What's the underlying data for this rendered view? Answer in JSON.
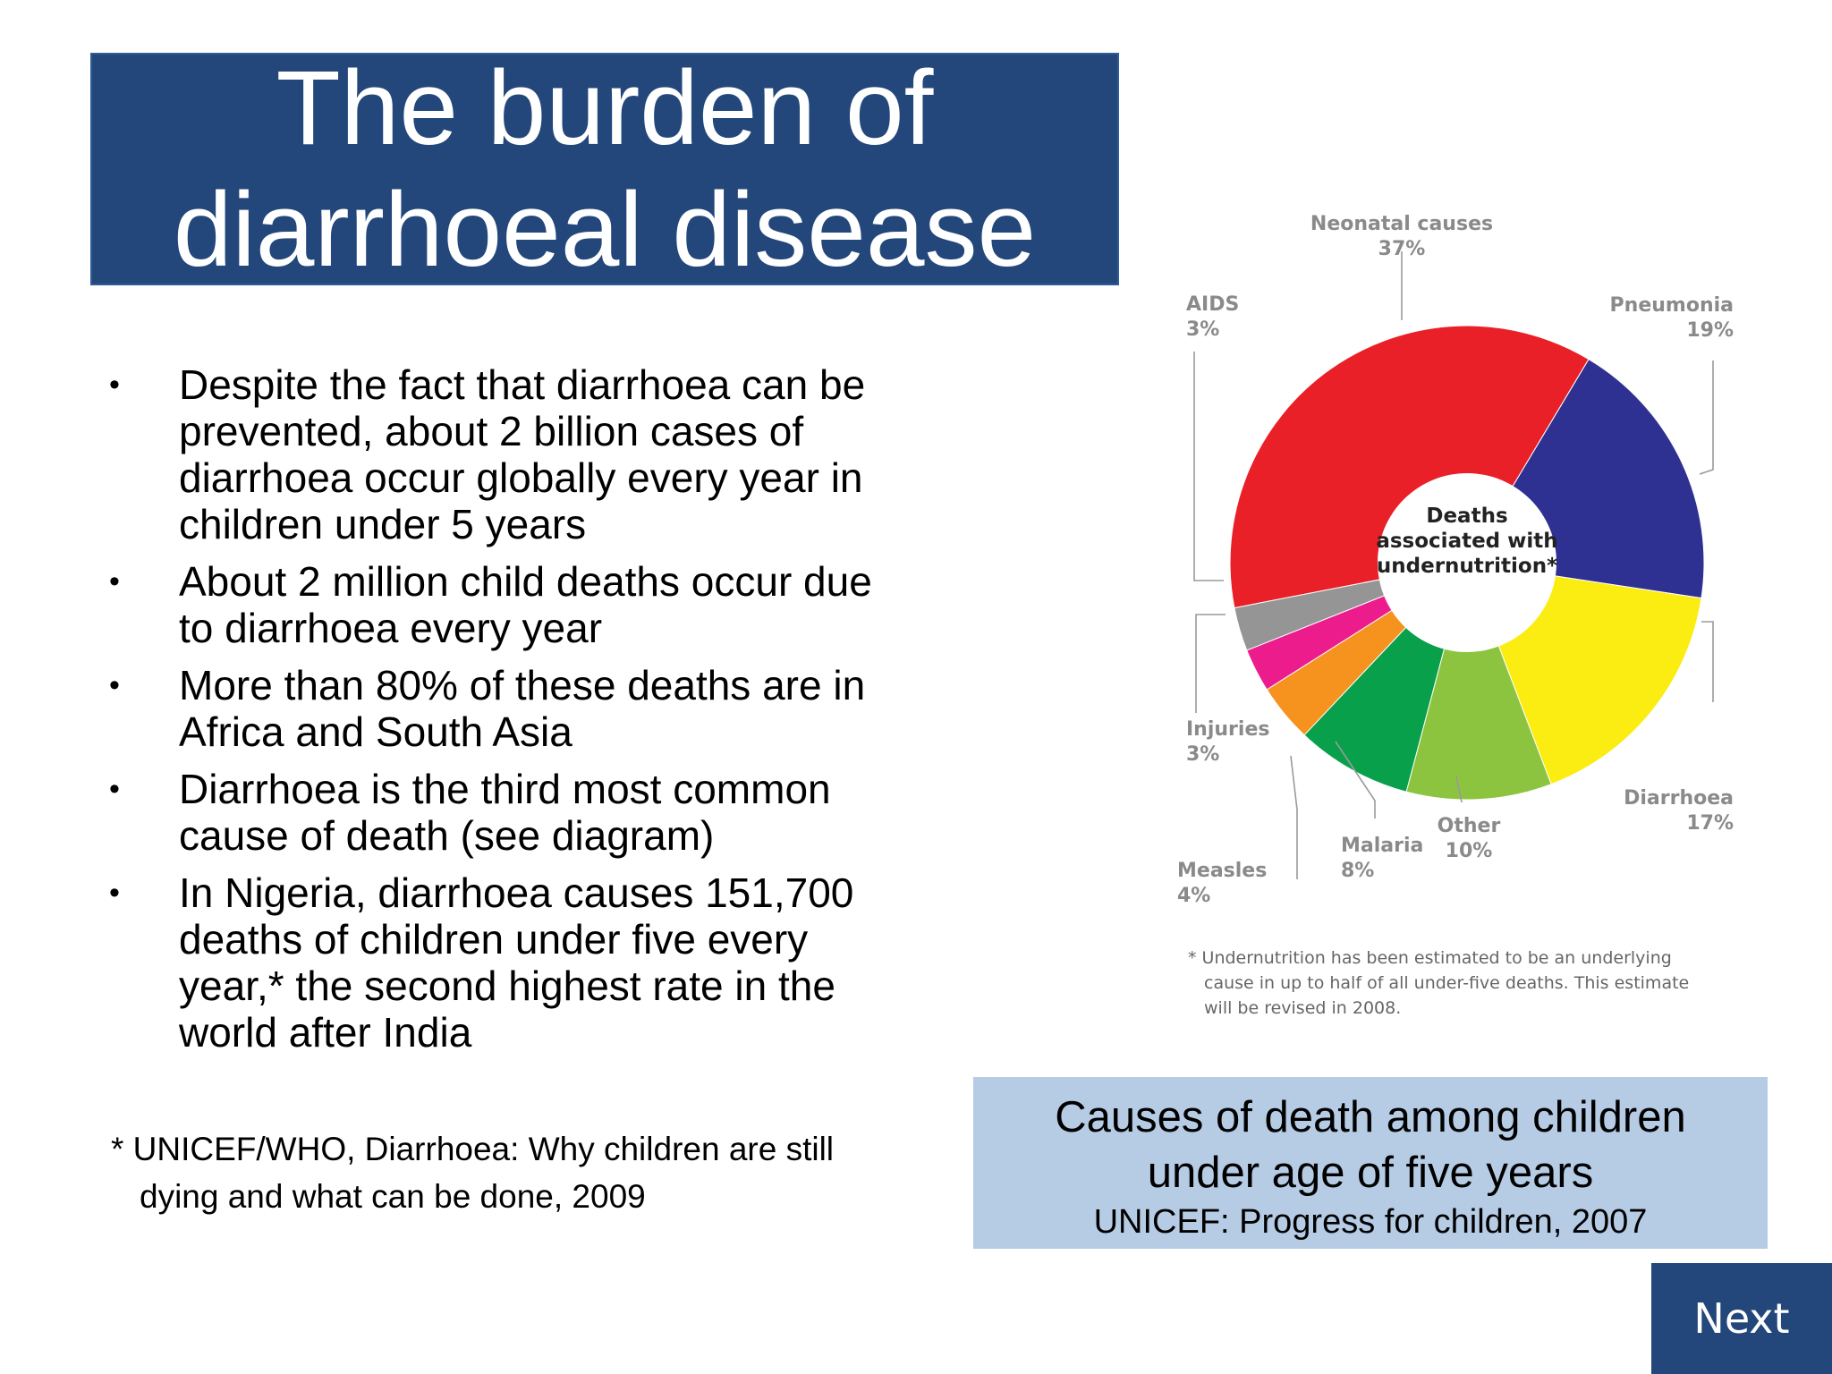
{
  "title": {
    "line1": "The burden of",
    "line2": "diarrhoeal disease"
  },
  "bullets": [
    {
      "marker": "•",
      "lines": [
        "Despite the fact that diarrhoea can be",
        "prevented, about 2 billion cases of",
        "diarrhoea occur globally every year in",
        "children under 5 years"
      ]
    },
    {
      "marker": "•",
      "lines": [
        "About 2 million child deaths occur due",
        "to diarrhoea every year"
      ]
    },
    {
      "marker": "•",
      "lines": [
        "More than 80% of these deaths are in",
        "Africa and South Asia"
      ]
    },
    {
      "marker": "•",
      "lines": [
        "Diarrhoea is the third most common",
        "cause of death (see diagram)"
      ]
    },
    {
      "marker": "•",
      "lines": [
        "In Nigeria, diarrhoea causes 151,700",
        "deaths of children under five every",
        "year,* the second highest rate in the",
        "world after India"
      ]
    }
  ],
  "footnote": {
    "line1": "* UNICEF/WHO, Diarrhoea: Why children are still",
    "line2": "dying and what can be done, 2009"
  },
  "chart_data": {
    "type": "pie",
    "center_label": [
      "Deaths",
      "associated with",
      "undernutrition*"
    ],
    "slices": [
      {
        "name": "Neonatal causes",
        "value": 37,
        "label": "37%",
        "color": "#e92028"
      },
      {
        "name": "Pneumonia",
        "value": 19,
        "label": "19%",
        "color": "#2e3192"
      },
      {
        "name": "Diarrhoea",
        "value": 17,
        "label": "17%",
        "color": "#fbec11"
      },
      {
        "name": "Other",
        "value": 10,
        "label": "10%",
        "color": "#8cc43f"
      },
      {
        "name": "Malaria",
        "value": 8,
        "label": "8%",
        "color": "#08a04b"
      },
      {
        "name": "Measles",
        "value": 4,
        "label": "4%",
        "color": "#f6921e"
      },
      {
        "name": "Injuries",
        "value": 3,
        "label": "3%",
        "color": "#ec1c8c"
      },
      {
        "name": "AIDS",
        "value": 3,
        "label": "3%",
        "color": "#959595"
      }
    ],
    "footnote": [
      "* Undernutrition has been estimated to be an underlying",
      "cause in up to half of all under-five deaths. This estimate",
      "will be revised in 2008."
    ]
  },
  "caption": {
    "line1": "Causes of death among children",
    "line2": "under age of five years",
    "source": "UNICEF: Progress for children, 2007"
  },
  "nav": {
    "next_label": "Next"
  }
}
